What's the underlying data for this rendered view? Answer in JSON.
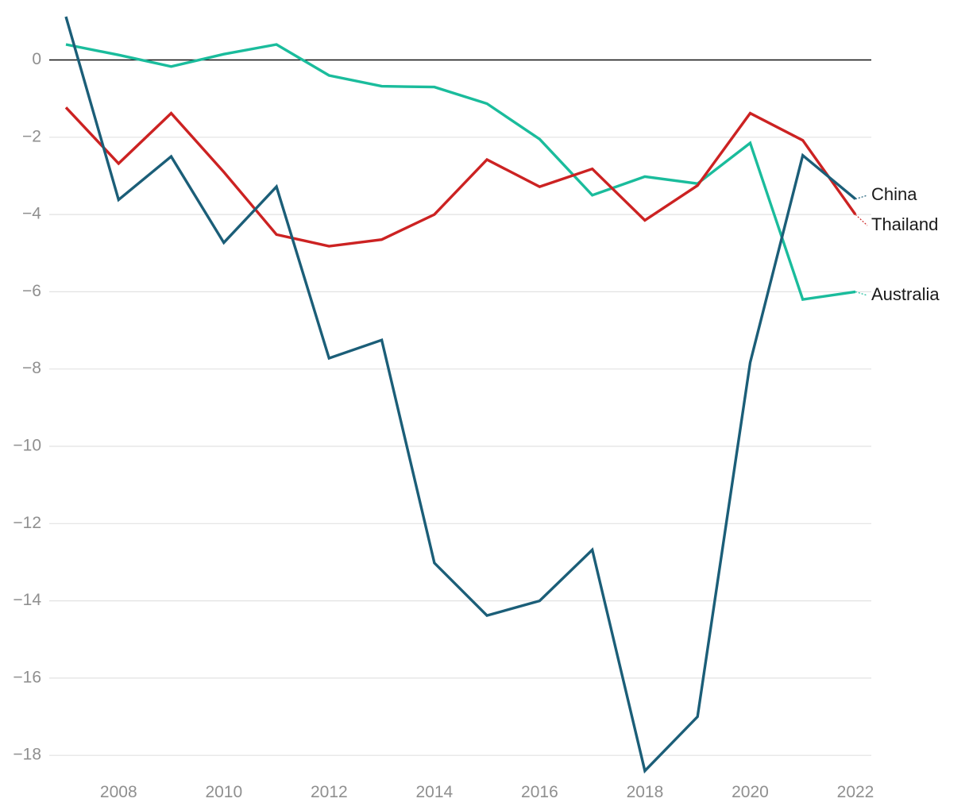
{
  "chart_data": {
    "type": "line",
    "title": "",
    "xlabel": "",
    "ylabel": "",
    "x": [
      2007,
      2008,
      2009,
      2010,
      2011,
      2012,
      2013,
      2014,
      2015,
      2016,
      2017,
      2018,
      2019,
      2020,
      2021,
      2022
    ],
    "xticks": [
      2008,
      2010,
      2012,
      2014,
      2016,
      2018,
      2020,
      2022
    ],
    "xlim": [
      2007,
      2022
    ],
    "yticks": [
      0,
      -2,
      -4,
      -6,
      -8,
      -10,
      -12,
      -14,
      -16,
      -18
    ],
    "ytick_labels": [
      "0",
      "−2",
      "−4",
      "−6",
      "−8",
      "−10",
      "−12",
      "−14",
      "−16",
      "−18"
    ],
    "ylim": [
      -18.4,
      1.1
    ],
    "grid": true,
    "zero_line": true,
    "legend": "direct labels at right end of lines",
    "series": [
      {
        "name": "Australia",
        "color": "#1abc9c",
        "values": [
          0.4,
          0.13,
          -0.17,
          0.15,
          0.4,
          -0.4,
          -0.68,
          -0.7,
          -1.13,
          -2.05,
          -3.5,
          -3.02,
          -3.2,
          -2.15,
          -6.2,
          -6.0
        ]
      },
      {
        "name": "Thailand",
        "color": "#cc2222",
        "values": [
          -1.23,
          -2.68,
          -1.38,
          -2.9,
          -4.52,
          -4.82,
          -4.65,
          -4.0,
          -2.58,
          -3.28,
          -2.82,
          -4.15,
          -3.25,
          -1.38,
          -2.08,
          -4.0
        ]
      },
      {
        "name": "China",
        "color": "#1b5e78",
        "values": [
          1.12,
          -3.62,
          -2.5,
          -4.73,
          -3.28,
          -7.72,
          -7.25,
          -13.02,
          -14.38,
          -14.0,
          -12.68,
          -18.4,
          -17.0,
          -7.83,
          -2.47,
          -3.6
        ]
      }
    ]
  }
}
